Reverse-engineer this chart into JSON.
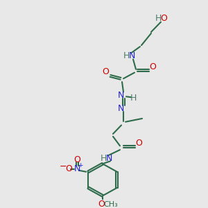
{
  "background_color": "#e8e8e8",
  "bond_color": "#2d6b4a",
  "atom_colors": {
    "O": "#cc0000",
    "N": "#2222cc",
    "H": "#4a7a6a",
    "C": "#2d6b4a",
    "default": "#2d6b4a"
  },
  "figsize": [
    3.0,
    3.0
  ],
  "dpi": 100
}
